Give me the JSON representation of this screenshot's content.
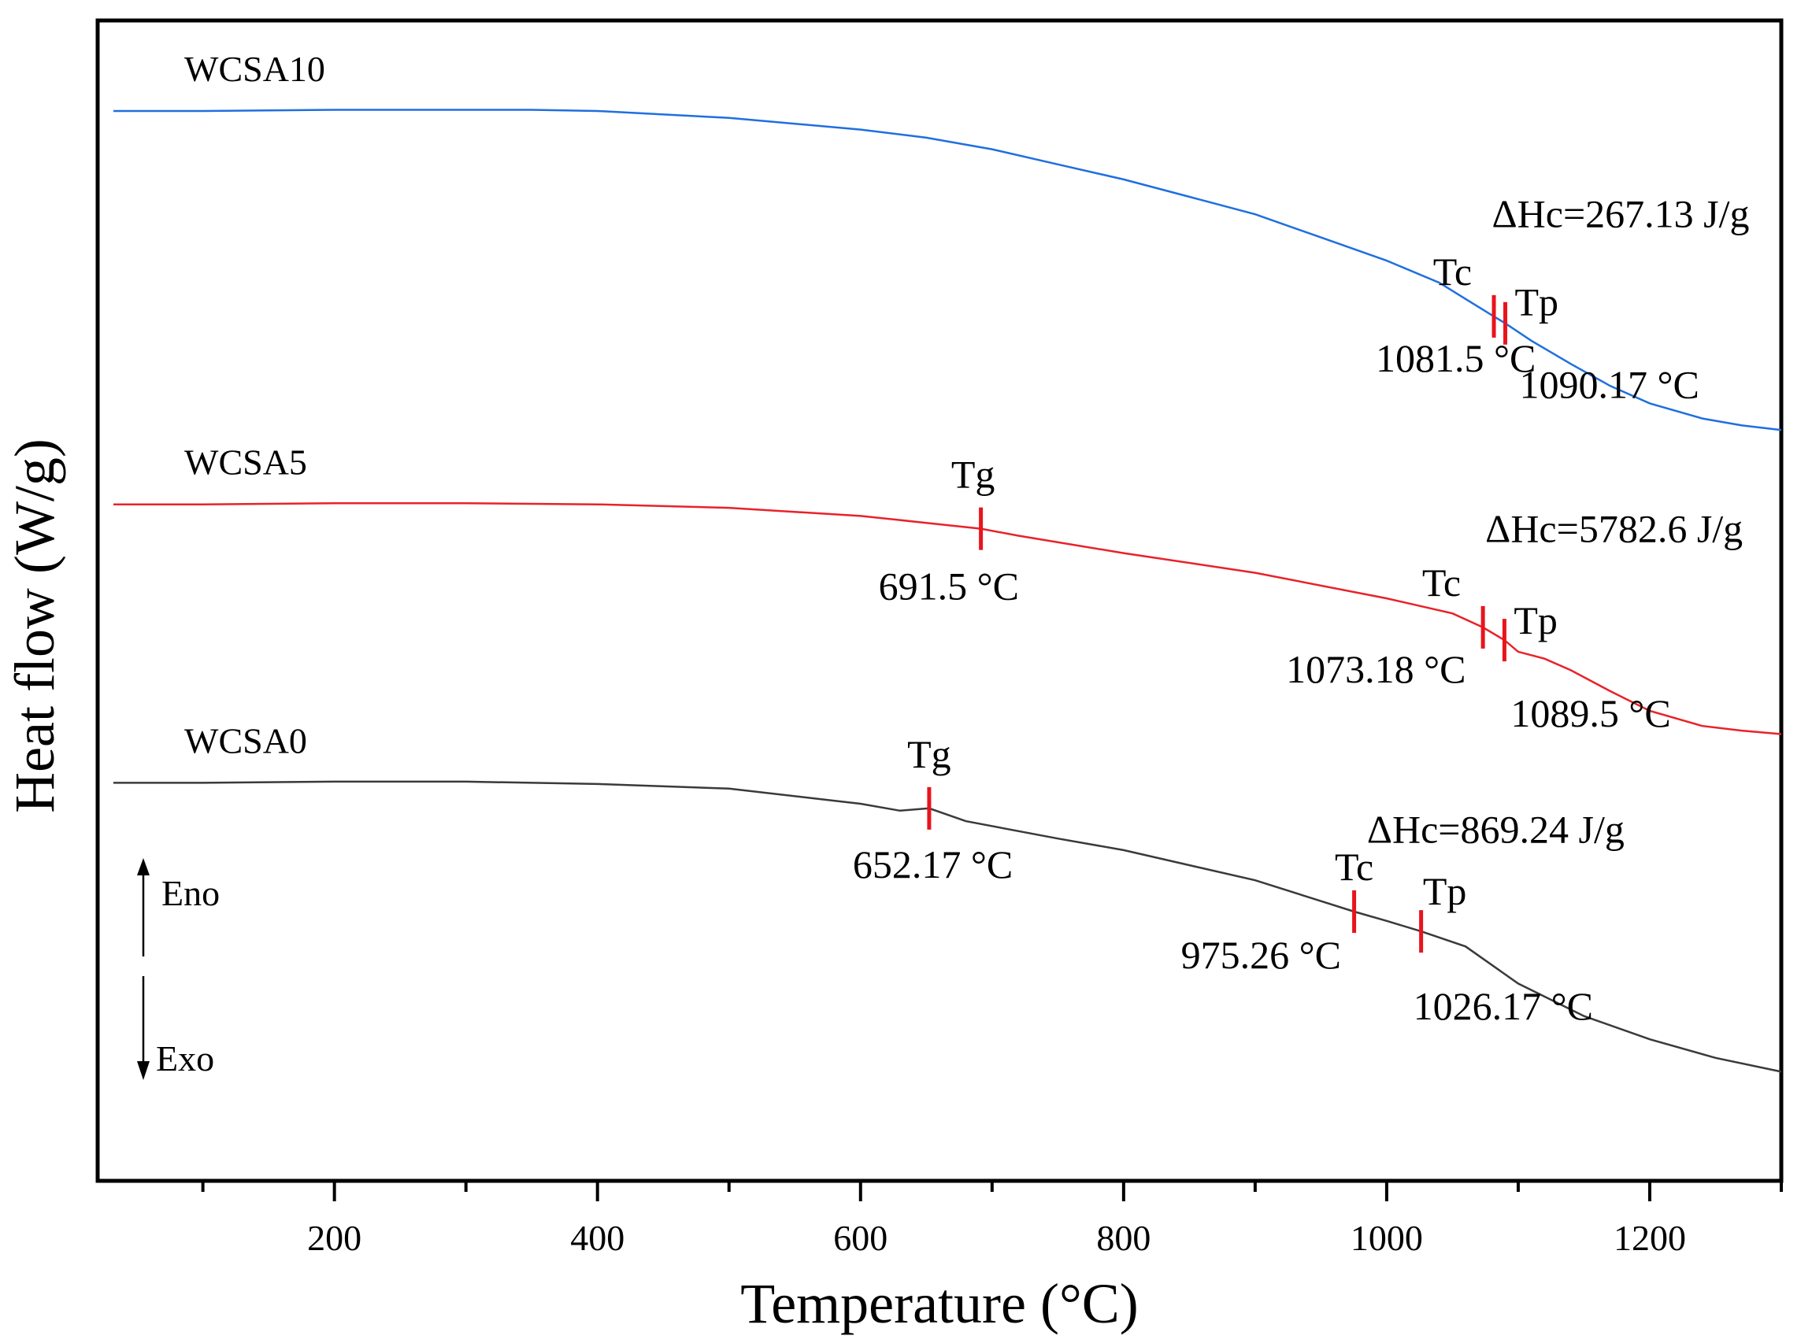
{
  "chart_data": {
    "type": "line",
    "xlabel": "Temperature (°C)",
    "ylabel": "Heat flow (W/g)",
    "xlim": [
      20,
      1300
    ],
    "xticks": [
      200,
      400,
      600,
      800,
      1000,
      1200
    ],
    "xtick_labels": [
      "200",
      "400",
      "600",
      "800",
      "1000",
      "1200"
    ],
    "xminor_ticks": [
      100,
      300,
      500,
      700,
      900,
      1100,
      1300
    ],
    "ylim": [
      0,
      100
    ],
    "yticks_shown": false,
    "direction_labels": {
      "up": "Eno",
      "down": "Exo"
    },
    "series": [
      {
        "name": "WCSA10",
        "color": "#1f6fe0",
        "x": [
          32,
          100,
          200,
          300,
          350,
          400,
          500,
          600,
          650,
          700,
          750,
          800,
          850,
          900,
          950,
          1000,
          1040,
          1060,
          1081.5,
          1090.17,
          1110,
          1140,
          1170,
          1200,
          1240,
          1270,
          1300
        ],
        "y": [
          92.2,
          92.2,
          92.3,
          92.3,
          92.3,
          92.2,
          91.6,
          90.6,
          89.9,
          88.9,
          87.6,
          86.3,
          84.8,
          83.3,
          81.3,
          79.3,
          77.4,
          76.0,
          74.5,
          73.9,
          72.4,
          70.4,
          68.5,
          67.0,
          65.7,
          65.1,
          64.7
        ],
        "annotations": [
          {
            "type": "Tc",
            "label": "Tc",
            "x": 1081.5,
            "value_label": "1081.5 °C"
          },
          {
            "type": "Tp",
            "label": "Tp",
            "x": 1090.17,
            "value_label": "1090.17 °C"
          },
          {
            "type": "dH",
            "label": "ΔHc=267.13 J/g"
          }
        ]
      },
      {
        "name": "WCSA5",
        "color": "#e8222a",
        "x": [
          32,
          100,
          200,
          300,
          400,
          500,
          600,
          650,
          691.5,
          720,
          800,
          900,
          1000,
          1050,
          1073.18,
          1089.5,
          1100,
          1120,
          1140,
          1170,
          1200,
          1240,
          1270,
          1300
        ],
        "y": [
          58.3,
          58.3,
          58.4,
          58.4,
          58.3,
          58.0,
          57.3,
          56.7,
          56.2,
          55.6,
          54.1,
          52.4,
          50.2,
          48.9,
          47.7,
          46.6,
          45.6,
          45.0,
          44.0,
          42.2,
          40.5,
          39.2,
          38.8,
          38.5
        ],
        "annotations": [
          {
            "type": "Tg",
            "label": "Tg",
            "x": 691.5,
            "value_label": "691.5 °C"
          },
          {
            "type": "Tc",
            "label": "Tc",
            "x": 1073.18,
            "value_label": "1073.18 °C"
          },
          {
            "type": "Tp",
            "label": "Tp",
            "x": 1089.5,
            "value_label": "1089.5 °C"
          },
          {
            "type": "dH",
            "label": "ΔHc=5782.6 J/g"
          }
        ]
      },
      {
        "name": "WCSA0",
        "color": "#3a3a3a",
        "x": [
          32,
          100,
          200,
          300,
          400,
          500,
          600,
          630,
          652.17,
          680,
          750,
          800,
          900,
          975.26,
          1000,
          1026.17,
          1060,
          1100,
          1150,
          1200,
          1250,
          1300
        ],
        "y": [
          34.3,
          34.3,
          34.4,
          34.4,
          34.2,
          33.8,
          32.5,
          31.9,
          32.1,
          31.0,
          29.5,
          28.5,
          25.9,
          23.2,
          22.4,
          21.5,
          20.2,
          17.0,
          14.2,
          12.2,
          10.6,
          9.4
        ],
        "annotations": [
          {
            "type": "Tg",
            "label": "Tg",
            "x": 652.17,
            "value_label": "652.17 °C"
          },
          {
            "type": "Tc",
            "label": "Tc",
            "x": 975.26,
            "value_label": "975.26 °C"
          },
          {
            "type": "Tp",
            "label": "Tp",
            "x": 1026.17,
            "value_label": "1026.17 °C"
          },
          {
            "type": "dH",
            "label": "ΔHc=869.24 J/g"
          }
        ]
      }
    ]
  }
}
